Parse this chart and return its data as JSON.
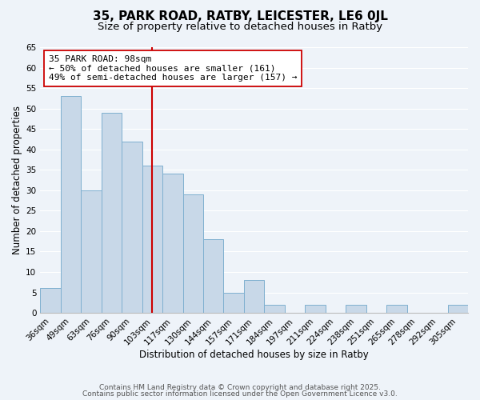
{
  "title_line1": "35, PARK ROAD, RATBY, LEICESTER, LE6 0JL",
  "title_line2": "Size of property relative to detached houses in Ratby",
  "xlabel": "Distribution of detached houses by size in Ratby",
  "ylabel": "Number of detached properties",
  "categories": [
    "36sqm",
    "49sqm",
    "63sqm",
    "76sqm",
    "90sqm",
    "103sqm",
    "117sqm",
    "130sqm",
    "144sqm",
    "157sqm",
    "171sqm",
    "184sqm",
    "197sqm",
    "211sqm",
    "224sqm",
    "238sqm",
    "251sqm",
    "265sqm",
    "278sqm",
    "292sqm",
    "305sqm"
  ],
  "values": [
    6,
    53,
    30,
    49,
    42,
    36,
    34,
    29,
    18,
    5,
    8,
    2,
    0,
    2,
    0,
    2,
    0,
    2,
    0,
    0,
    2
  ],
  "bar_color": "#c8d8e8",
  "bar_edge_color": "#7fb0d0",
  "bar_width": 1.0,
  "vline_x": 5,
  "vline_color": "#cc0000",
  "ylim": [
    0,
    65
  ],
  "yticks": [
    0,
    5,
    10,
    15,
    20,
    25,
    30,
    35,
    40,
    45,
    50,
    55,
    60,
    65
  ],
  "annotation_title": "35 PARK ROAD: 98sqm",
  "annotation_line2": "← 50% of detached houses are smaller (161)",
  "annotation_line3": "49% of semi-detached houses are larger (157) →",
  "footer_line1": "Contains HM Land Registry data © Crown copyright and database right 2025.",
  "footer_line2": "Contains public sector information licensed under the Open Government Licence v3.0.",
  "background_color": "#eef3f9",
  "grid_color": "#ffffff",
  "title_fontsize": 11,
  "subtitle_fontsize": 9.5,
  "axis_label_fontsize": 8.5,
  "tick_fontsize": 7.5,
  "annotation_fontsize": 8,
  "footer_fontsize": 6.5
}
